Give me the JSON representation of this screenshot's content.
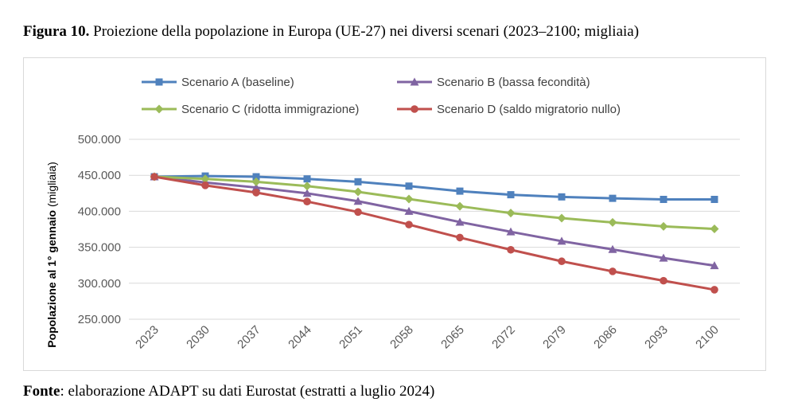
{
  "figure": {
    "label": "Figura 10.",
    "title": "Proiezione della popolazione in Europa (UE-27) nei diversi scenari (2023–2100; migliaia)"
  },
  "source": {
    "label": "Fonte",
    "text": ": elaborazione ADAPT su dati Eurostat (estratti a luglio 2024)"
  },
  "chart_data": {
    "type": "line",
    "title": "",
    "xlabel": "",
    "ylabel": "Popolazione al 1° gennaio",
    "ylabel_unit": "(migliaia)",
    "ylim": [
      250000,
      500000
    ],
    "yticks": [
      250000,
      300000,
      350000,
      400000,
      450000,
      500000
    ],
    "ytick_labels": [
      "250.000",
      "300.000",
      "350.000",
      "400.000",
      "450.000",
      "500.000"
    ],
    "grid": true,
    "legend_position": "top",
    "categories": [
      "2023",
      "2030",
      "2037",
      "2044",
      "2051",
      "2058",
      "2065",
      "2072",
      "2079",
      "2086",
      "2093",
      "2100"
    ],
    "series": [
      {
        "name": "Scenario A (baseline)",
        "color": "#4f81bd",
        "marker": "square",
        "values": [
          448000,
          449000,
          448000,
          445000,
          441000,
          435000,
          428000,
          423000,
          420000,
          418000,
          416500,
          416500
        ]
      },
      {
        "name": "Scenario B (bassa fecondità)",
        "color": "#8064a2",
        "marker": "triangle",
        "values": [
          448000,
          440000,
          433000,
          425000,
          414000,
          400000,
          385000,
          371500,
          358500,
          347000,
          335000,
          324500
        ]
      },
      {
        "name": "Scenario C (ridotta immigrazione)",
        "color": "#9bbb59",
        "marker": "diamond",
        "values": [
          448000,
          445000,
          441000,
          435000,
          427000,
          417000,
          407000,
          397500,
          390500,
          384500,
          379000,
          375500
        ]
      },
      {
        "name": "Scenario D (saldo migratorio nullo)",
        "color": "#c0504d",
        "marker": "circle",
        "values": [
          448000,
          436000,
          426000,
          413500,
          399000,
          381500,
          363500,
          346500,
          330500,
          316500,
          303500,
          291000
        ]
      }
    ]
  }
}
